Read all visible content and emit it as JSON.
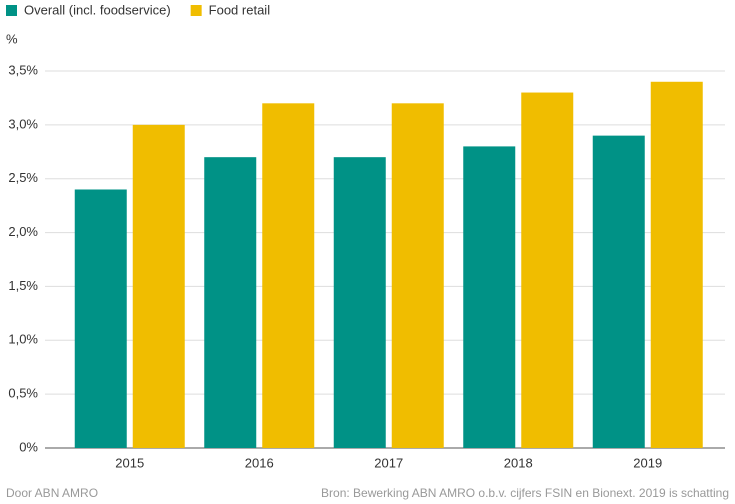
{
  "chart_data": {
    "type": "bar",
    "y_label": "%",
    "categories": [
      "2015",
      "2016",
      "2017",
      "2018",
      "2019"
    ],
    "series": [
      {
        "name": "Overall (incl. foodservice)",
        "color": "#009286",
        "values": [
          2.4,
          2.7,
          2.7,
          2.8,
          2.9
        ]
      },
      {
        "name": "Food retail",
        "color": "#f0bd00",
        "values": [
          3.0,
          3.2,
          3.2,
          3.3,
          3.4
        ]
      }
    ],
    "ylim": [
      0,
      3.5
    ],
    "yticks": [
      {
        "value": 0,
        "label": "0%"
      },
      {
        "value": 0.5,
        "label": "0,5%"
      },
      {
        "value": 1,
        "label": "1,0%"
      },
      {
        "value": 1.5,
        "label": "1,5%"
      },
      {
        "value": 2,
        "label": "2,0%"
      },
      {
        "value": 2.5,
        "label": "2,5%"
      },
      {
        "value": 3,
        "label": "3,0%"
      },
      {
        "value": 3.5,
        "label": "3,5%"
      }
    ],
    "grid": true,
    "legend_position": "top-left",
    "credit": "Door ABN AMRO",
    "source": "Bron: Bewerking ABN AMRO o.b.v. cijfers FSIN en Bionext. 2019 is schatting"
  }
}
